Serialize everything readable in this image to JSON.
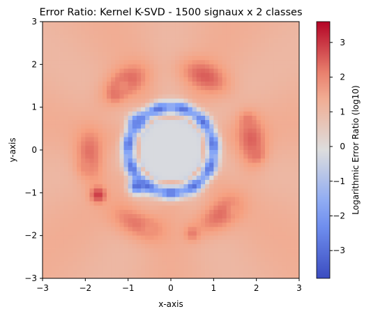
{
  "chart_data": {
    "type": "heatmap",
    "title": "Error Ratio: Kernel K-SVD - 1500 signaux x 2 classes",
    "xlabel": "x-axis",
    "ylabel": "y-axis",
    "xlim": [
      -3,
      3
    ],
    "ylim": [
      -3,
      3
    ],
    "xticks": [
      "−3",
      "−2",
      "−1",
      "0",
      "1",
      "2",
      "3"
    ],
    "yticks": [
      "−3",
      "−2",
      "−1",
      "0",
      "1",
      "2",
      "3"
    ],
    "grid": false,
    "colormap": "coolwarm",
    "colorbar": {
      "label": "Logarithmic Error Ratio (log10)",
      "range": [
        -3.8,
        3.6
      ],
      "ticks": [
        "−3",
        "−2",
        "−1",
        "0",
        "1",
        "2",
        "3"
      ],
      "tick_values": [
        -3,
        -2,
        -1,
        0,
        1,
        2,
        3
      ]
    },
    "field": {
      "grid_resolution": 60,
      "center_value": -0.2,
      "inner_ring_radius": 1.0,
      "inner_ring_min": -3.0,
      "outer_ring_radius": 1.9,
      "outer_ring_peak": 2.4,
      "background_value": 1.2,
      "hotspots": [
        {
          "x": -1.3,
          "y": 1.3,
          "value": 2.3
        },
        {
          "x": -1.1,
          "y": 1.5,
          "value": 2.0
        },
        {
          "x": 1.8,
          "y": 0.7,
          "value": 2.2
        },
        {
          "x": 2.0,
          "y": -0.1,
          "value": 2.3
        },
        {
          "x": -1.7,
          "y": -1.05,
          "value": 3.0
        },
        {
          "x": -2.0,
          "y": -0.4,
          "value": 2.0
        },
        {
          "x": 0.5,
          "y": -1.95,
          "value": 2.2
        },
        {
          "x": -0.5,
          "y": -1.85,
          "value": 1.9
        },
        {
          "x": 1.5,
          "y": -1.4,
          "value": 1.8
        },
        {
          "x": -0.8,
          "y": -0.85,
          "value": -3.2
        },
        {
          "x": -0.8,
          "y": 0.65,
          "value": -2.5
        }
      ]
    }
  }
}
